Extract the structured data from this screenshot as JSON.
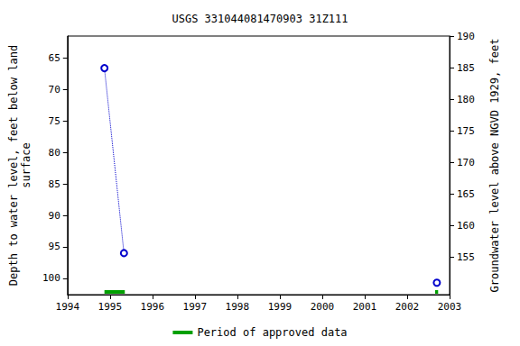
{
  "chart_data": {
    "type": "line",
    "title": "USGS 331044081470903 31Z111",
    "y_label": "Depth to water level, feet below land\nsurface",
    "y2_label": "Groundwater level above NGVD 1929, feet",
    "xlim": [
      1994,
      2003
    ],
    "xticks": [
      1994,
      1995,
      1996,
      1997,
      1998,
      1999,
      2000,
      2001,
      2002,
      2003
    ],
    "ylim": [
      102.6,
      61.5
    ],
    "yticks": [
      65,
      70,
      75,
      80,
      85,
      90,
      95,
      100
    ],
    "y2lim": [
      149,
      190.1
    ],
    "y2ticks": [
      155,
      160,
      165,
      170,
      175,
      180,
      185,
      190
    ],
    "x": [
      1994.87,
      1995.33,
      1999,
      2002.7
    ],
    "series": [
      {
        "values": [
          66.6,
          96.0,
          null,
          100.7
        ],
        "color": "#0000cc",
        "marker": "circle",
        "line_style": "dotted"
      },
      {
        "name": "Period of approved data",
        "type": "period",
        "color": "#00a000",
        "periods": [
          [
            1994.87,
            1995.35
          ],
          [
            2002.66,
            2002.73
          ]
        ]
      }
    ],
    "legend": "bottom",
    "grid": false
  }
}
